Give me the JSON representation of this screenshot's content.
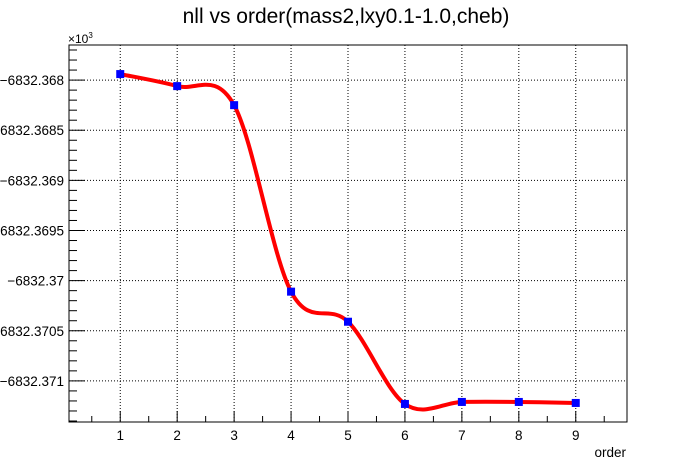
{
  "chart_data": {
    "type": "line",
    "title": "nll vs order(mass2,lxy0.1-1.0,cheb)",
    "xlabel": "order",
    "ylabel": "",
    "exponent_label": {
      "base": "×10",
      "power": "3"
    },
    "x": [
      1,
      2,
      3,
      4,
      5,
      6,
      7,
      8,
      9
    ],
    "series": [
      {
        "values": [
          -6832.36794,
          -6832.36806,
          -6832.36825,
          -6832.37011,
          -6832.37041,
          -6832.37123,
          -6832.37121,
          -6832.37121,
          -6832.37122
        ]
      }
    ],
    "xlim": [
      0.1,
      9.9
    ],
    "ylim": [
      -6832.37141,
      -6832.36765
    ],
    "xticks": [
      1,
      2,
      3,
      4,
      5,
      6,
      7,
      8,
      9
    ],
    "yticks": [
      -6832.368,
      -6832.3685,
      -6832.369,
      -6832.3695,
      -6832.37,
      -6832.3705,
      -6832.371
    ],
    "ytick_labels": [
      "−6832.368",
      "−6832.3685",
      "−6832.369",
      "−6832.3695",
      "−6832.37",
      "−6832.3705",
      "−6832.371"
    ],
    "grid": true,
    "legend": "none",
    "colors": {
      "line": "#ff0000",
      "marker": "#0000ff",
      "axes": "#000000",
      "grid": "#000000"
    }
  }
}
